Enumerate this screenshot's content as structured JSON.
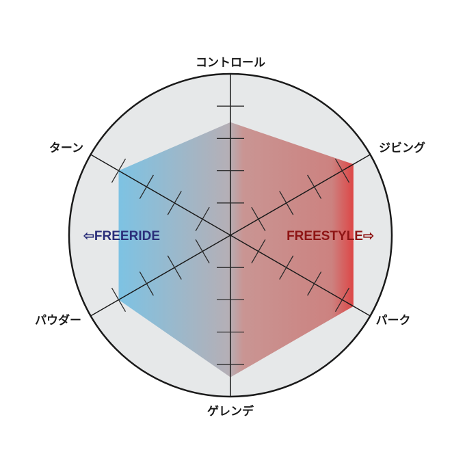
{
  "chart_data": {
    "type": "radar",
    "axes": [
      "コントロール",
      "ジビング",
      "パーク",
      "ゲレンデ",
      "パウダー",
      "ターン"
    ],
    "values": [
      3.5,
      4.4,
      4.4,
      4.4,
      4.0,
      4.0
    ],
    "range": [
      0,
      5
    ],
    "tick_count": 4,
    "grid": false,
    "annotations": {
      "left": "⇦FREERIDE",
      "right": "FREESTYLE⇨"
    },
    "colors": {
      "left_fill": "#7cc3e4",
      "center_fill": "#b5afb6",
      "right_fill": "#df4141",
      "left_text": "#2b2f7a",
      "right_text": "#8e1414",
      "circle_fill": "#e6e8e9",
      "line": "#1a1a1a"
    }
  }
}
